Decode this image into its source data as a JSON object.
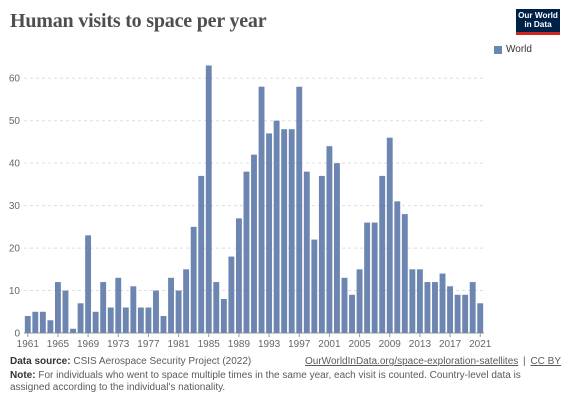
{
  "header": {
    "title": "Human visits to space per year",
    "logo_line1": "Our World",
    "logo_line2": "in Data"
  },
  "colors": {
    "bar": "#6d86b1",
    "grid": "#dddddd",
    "logo_bg": "#002147",
    "logo_accent": "#ce261e"
  },
  "chart_data": {
    "type": "bar",
    "title": "Human visits to space per year",
    "xlabel": "",
    "ylabel": "",
    "ylim": [
      0,
      65
    ],
    "y_ticks": [
      0,
      10,
      20,
      30,
      40,
      50,
      60
    ],
    "x_tick_labels": [
      "1961",
      "1965",
      "1969",
      "1973",
      "1977",
      "1981",
      "1985",
      "1989",
      "1993",
      "1997",
      "2001",
      "2005",
      "2009",
      "2013",
      "2017",
      "2021"
    ],
    "grid": "horizontal-dotted",
    "legend_position": "top-right",
    "categories": [
      1961,
      1962,
      1963,
      1964,
      1965,
      1966,
      1967,
      1968,
      1969,
      1970,
      1971,
      1972,
      1973,
      1974,
      1975,
      1976,
      1977,
      1978,
      1979,
      1980,
      1981,
      1982,
      1983,
      1984,
      1985,
      1986,
      1987,
      1988,
      1989,
      1990,
      1991,
      1992,
      1993,
      1994,
      1995,
      1996,
      1997,
      1998,
      1999,
      2000,
      2001,
      2002,
      2003,
      2004,
      2005,
      2006,
      2007,
      2008,
      2009,
      2010,
      2011,
      2012,
      2013,
      2014,
      2015,
      2016,
      2017,
      2018,
      2019,
      2020,
      2021
    ],
    "series": [
      {
        "name": "World",
        "values": [
          4,
          5,
          5,
          3,
          12,
          10,
          1,
          7,
          23,
          5,
          12,
          6,
          13,
          6,
          11,
          6,
          6,
          10,
          4,
          13,
          10,
          15,
          25,
          37,
          63,
          12,
          8,
          18,
          27,
          38,
          42,
          58,
          47,
          50,
          48,
          48,
          58,
          38,
          22,
          37,
          44,
          40,
          13,
          9,
          15,
          26,
          26,
          37,
          46,
          31,
          28,
          15,
          15,
          12,
          12,
          14,
          11,
          9,
          9,
          12,
          7
        ]
      }
    ]
  },
  "footer": {
    "source_label": "Data source:",
    "source_text": "CSIS Aerospace Security Project (2022)",
    "url": "OurWorldInData.org/space-exploration-satellites",
    "separator": "|",
    "license": "CC BY",
    "note_label": "Note:",
    "note_text": "For individuals who went to space multiple times in the same year, each visit is counted. Country-level data is assigned according to the individual's nationality."
  }
}
